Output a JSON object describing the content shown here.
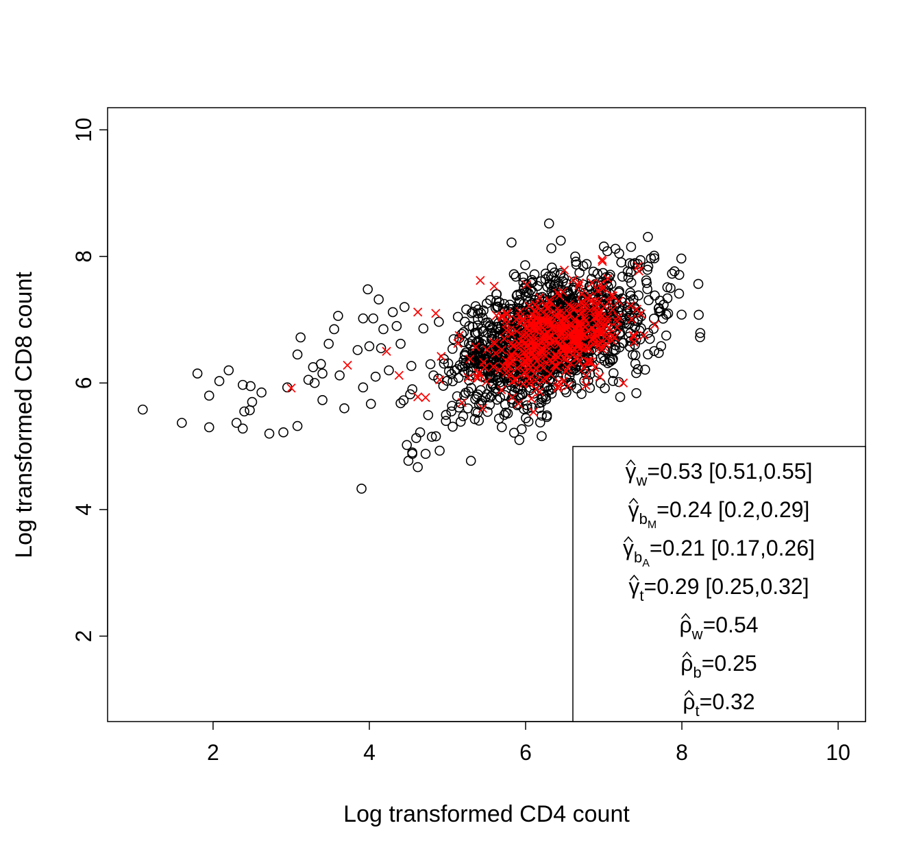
{
  "chart_data": {
    "type": "scatter",
    "title": "",
    "xlabel": "Log transformed CD4 count",
    "ylabel": "Log transformed CD8 count",
    "xlim": [
      0.65,
      10.35
    ],
    "ylim": [
      0.65,
      10.35
    ],
    "xticks": [
      2,
      4,
      6,
      8,
      10
    ],
    "yticks": [
      2,
      4,
      6,
      8,
      10
    ],
    "grid": false,
    "legend_position": "bottom-right",
    "series": [
      {
        "marker": "circle-open",
        "color": "#000000",
        "cloud": {
          "count": 1400,
          "x_mean": 6.3,
          "y_mean": 6.7,
          "x_sd": 0.62,
          "y_sd": 0.52,
          "correlation": 0.45,
          "seed": 7
        },
        "points": [
          [
            1.1,
            5.58
          ],
          [
            1.6,
            5.37
          ],
          [
            1.8,
            6.15
          ],
          [
            1.95,
            5.8
          ],
          [
            1.95,
            5.3
          ],
          [
            2.08,
            6.03
          ],
          [
            2.2,
            6.2
          ],
          [
            2.3,
            5.37
          ],
          [
            2.38,
            5.28
          ],
          [
            2.38,
            5.97
          ],
          [
            2.4,
            5.55
          ],
          [
            2.48,
            5.95
          ],
          [
            2.47,
            5.57
          ],
          [
            2.5,
            5.7
          ],
          [
            2.62,
            5.85
          ],
          [
            2.72,
            5.2
          ],
          [
            2.9,
            5.22
          ],
          [
            2.95,
            5.93
          ],
          [
            3.08,
            6.45
          ],
          [
            3.12,
            6.72
          ],
          [
            3.08,
            5.32
          ],
          [
            3.22,
            6.05
          ],
          [
            3.28,
            6.25
          ],
          [
            3.3,
            6.0
          ],
          [
            3.38,
            6.3
          ],
          [
            3.4,
            6.15
          ],
          [
            3.4,
            5.73
          ],
          [
            3.48,
            6.62
          ],
          [
            3.55,
            6.85
          ],
          [
            3.6,
            7.06
          ],
          [
            3.62,
            6.12
          ],
          [
            3.68,
            5.6
          ],
          [
            3.85,
            6.52
          ],
          [
            3.92,
            5.93
          ],
          [
            3.92,
            7.02
          ],
          [
            3.98,
            7.48
          ],
          [
            4.0,
            6.58
          ],
          [
            4.05,
            7.02
          ],
          [
            4.02,
            5.67
          ],
          [
            4.08,
            6.1
          ],
          [
            4.12,
            7.32
          ],
          [
            4.18,
            6.85
          ],
          [
            4.25,
            6.2
          ],
          [
            4.3,
            7.12
          ],
          [
            4.35,
            6.9
          ],
          [
            4.4,
            6.62
          ],
          [
            4.45,
            7.2
          ],
          [
            4.48,
            5.02
          ],
          [
            4.5,
            4.77
          ],
          [
            4.55,
            4.88
          ],
          [
            4.6,
            5.13
          ],
          [
            4.62,
            4.67
          ],
          [
            4.65,
            5.22
          ],
          [
            4.72,
            4.88
          ],
          [
            4.8,
            5.15
          ],
          [
            4.9,
            4.93
          ],
          [
            4.98,
            5.4
          ],
          [
            5.05,
            5.55
          ],
          [
            3.9,
            4.33
          ],
          [
            5.3,
            4.77
          ],
          [
            5.92,
            5.1
          ],
          [
            6.3,
            8.52
          ],
          [
            6.45,
            8.25
          ],
          [
            5.82,
            8.22
          ],
          [
            7.35,
            8.15
          ],
          [
            7.15,
            8.12
          ],
          [
            7.55,
            7.58
          ],
          [
            7.72,
            7.3
          ],
          [
            7.8,
            6.75
          ],
          [
            7.8,
            7.08
          ],
          [
            4.4,
            5.68
          ],
          [
            4.55,
            5.9
          ],
          [
            4.15,
            6.55
          ]
        ]
      },
      {
        "marker": "cross",
        "color": "#ff0000",
        "cloud": {
          "count": 420,
          "x_mean": 6.4,
          "y_mean": 6.75,
          "x_sd": 0.45,
          "y_sd": 0.4,
          "correlation": 0.4,
          "seed": 11
        },
        "points": [
          [
            3.0,
            5.92
          ],
          [
            3.72,
            6.28
          ],
          [
            4.22,
            6.5
          ],
          [
            4.38,
            6.12
          ],
          [
            4.62,
            5.78
          ],
          [
            4.72,
            5.77
          ],
          [
            4.85,
            7.1
          ],
          [
            4.9,
            6.05
          ],
          [
            4.92,
            6.42
          ],
          [
            4.62,
            7.12
          ],
          [
            5.42,
            7.62
          ],
          [
            5.45,
            5.6
          ],
          [
            6.98,
            7.95
          ],
          [
            7.25,
            6.0
          ],
          [
            7.05,
            7.65
          ],
          [
            5.15,
            6.75
          ]
        ]
      }
    ],
    "legend": {
      "box": true,
      "lines": [
        {
          "symbol": "γ",
          "hat": true,
          "sub": "w",
          "subsub": "",
          "text": "=0.53 [0.51,0.55]"
        },
        {
          "symbol": "γ",
          "hat": true,
          "sub": "b",
          "subsub": "M",
          "text": "=0.24 [0.2,0.29]"
        },
        {
          "symbol": "γ",
          "hat": true,
          "sub": "b",
          "subsub": "A",
          "text": "=0.21 [0.17,0.26]"
        },
        {
          "symbol": "γ",
          "hat": true,
          "sub": "t",
          "subsub": "",
          "text": "=0.29 [0.25,0.32]"
        },
        {
          "symbol": "ρ",
          "hat": true,
          "sub": "w",
          "subsub": "",
          "text": "=0.54"
        },
        {
          "symbol": "ρ",
          "hat": true,
          "sub": "b",
          "subsub": "",
          "text": "=0.25"
        },
        {
          "symbol": "ρ",
          "hat": true,
          "sub": "t",
          "subsub": "",
          "text": "=0.32"
        }
      ]
    }
  }
}
